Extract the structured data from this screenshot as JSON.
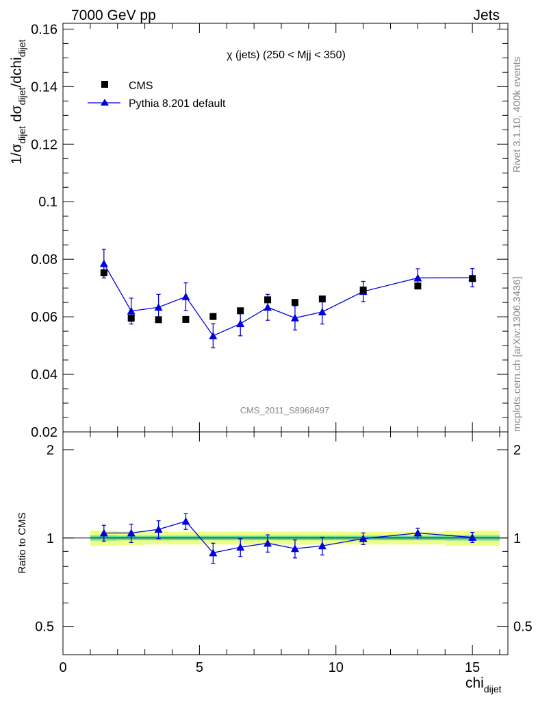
{
  "header": {
    "left": "7000 GeV pp",
    "right": "Jets"
  },
  "side_labels": {
    "rivet": "Rivet 3.1.10,  400k events",
    "mcplots": "mcplots.cern.ch [arXiv:1306.3436]"
  },
  "watermark": "CMS_2011_S8968497",
  "colors": {
    "data": "#000000",
    "mc": "#0000dd",
    "band_inner": "#66dd99",
    "band_outer": "#eeff88"
  },
  "chart_data": [
    {
      "type": "scatter",
      "title": "χ (jets) (250 < Mjj <  350)",
      "ylabel": "1/σ_dijet dσ_dijet/dchi_dijet",
      "ylim": [
        0.02,
        0.162
      ],
      "xlim": [
        0,
        16.3
      ],
      "yticks": [
        "0.02",
        "0.04",
        "0.06",
        "0.08",
        "0.1",
        "0.12",
        "0.14",
        "0.16"
      ],
      "legend": [
        "CMS",
        "Pythia 8.201 default"
      ],
      "series": [
        {
          "name": "CMS",
          "x": [
            1.5,
            2.5,
            3.5,
            4.5,
            5.5,
            6.5,
            7.5,
            8.5,
            9.5,
            11,
            13,
            15
          ],
          "y": [
            0.0753,
            0.0595,
            0.059,
            0.0591,
            0.0601,
            0.0621,
            0.0659,
            0.065,
            0.0662,
            0.0693,
            0.0707,
            0.0733
          ],
          "yerr": [
            0.0013,
            0.0008,
            0.0008,
            0.0008,
            0.0008,
            0.0008,
            0.0009,
            0.0009,
            0.0009,
            0.001,
            0.001,
            0.001
          ]
        },
        {
          "name": "Pythia 8.201 default",
          "x": [
            1.5,
            2.5,
            3.5,
            4.5,
            5.5,
            6.5,
            7.5,
            8.5,
            9.5,
            11,
            13,
            15
          ],
          "y": [
            0.0785,
            0.062,
            0.0633,
            0.067,
            0.0534,
            0.0576,
            0.0633,
            0.0596,
            0.0617,
            0.0688,
            0.0735,
            0.0736
          ],
          "yerr": [
            0.005,
            0.0045,
            0.0045,
            0.0048,
            0.0042,
            0.0042,
            0.0045,
            0.0042,
            0.0042,
            0.0035,
            0.0032,
            0.0032
          ]
        }
      ]
    },
    {
      "type": "scatter",
      "ylabel": "Ratio to CMS",
      "xlabel": "chi_dijet",
      "ylim": [
        0.4,
        2.3
      ],
      "log_y": true,
      "xlim": [
        0,
        16.3
      ],
      "yticks": [
        "0.5",
        "1",
        "2"
      ],
      "xticks": [
        "0",
        "5",
        "10",
        "15"
      ],
      "ratio": {
        "x": [
          1.5,
          2.5,
          3.5,
          4.5,
          5.5,
          6.5,
          7.5,
          8.5,
          9.5,
          11,
          13,
          15
        ],
        "y": [
          1.04,
          1.04,
          1.07,
          1.14,
          0.89,
          0.93,
          0.96,
          0.92,
          0.94,
          0.995,
          1.04,
          1.005
        ],
        "yerr": [
          0.065,
          0.075,
          0.075,
          0.07,
          0.07,
          0.065,
          0.065,
          0.065,
          0.065,
          0.045,
          0.04,
          0.04
        ]
      },
      "band_edges": [
        1,
        2,
        3,
        4,
        5,
        6,
        7,
        8,
        9,
        10,
        12,
        14,
        16
      ],
      "band_inner": [
        0.02,
        0.018,
        0.018,
        0.018,
        0.018,
        0.018,
        0.018,
        0.018,
        0.018,
        0.018,
        0.018,
        0.02
      ],
      "band_outer": [
        0.06,
        0.055,
        0.05,
        0.05,
        0.05,
        0.05,
        0.05,
        0.05,
        0.05,
        0.05,
        0.05,
        0.06
      ]
    }
  ]
}
